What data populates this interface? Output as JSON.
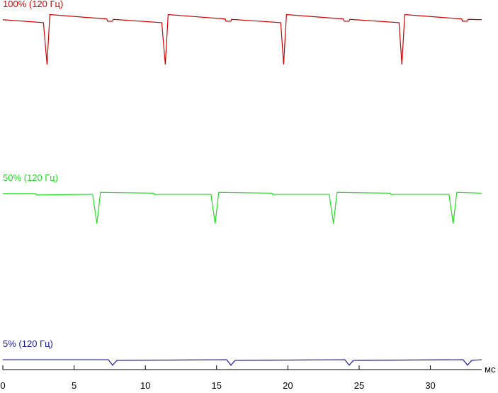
{
  "chart_data": {
    "type": "line",
    "x_label": "мс",
    "xlim": [
      0,
      33.6
    ],
    "xticks": [
      0,
      5,
      10,
      15,
      20,
      25,
      30
    ],
    "ylim": [
      0,
      100
    ],
    "series": [
      {
        "name": "100% (120 Гц)",
        "color": "#d00000",
        "x": [
          0,
          2.85,
          3.1,
          3.3,
          7.3,
          7.35,
          7.7,
          7.75,
          11.15,
          11.4,
          11.6,
          15.6,
          15.65,
          16.0,
          16.05,
          19.5,
          19.7,
          19.9,
          23.9,
          23.95,
          24.3,
          24.35,
          27.8,
          28.0,
          28.2,
          32.2,
          32.25,
          32.6,
          32.65,
          33.6
        ],
        "values": [
          95.4,
          94.6,
          83.2,
          96.8,
          95.6,
          95.0,
          95.0,
          95.5,
          94.6,
          83.2,
          96.8,
          95.6,
          95.0,
          95.0,
          95.5,
          94.6,
          83.2,
          96.8,
          95.6,
          95.0,
          95.0,
          95.5,
          94.6,
          83.2,
          96.8,
          95.6,
          95.0,
          95.0,
          95.5,
          95.4
        ]
      },
      {
        "name": "50% (120 Гц)",
        "color": "#22dd22",
        "x": [
          0,
          2.3,
          2.35,
          2.6,
          6.3,
          6.6,
          6.85,
          10.6,
          10.65,
          10.9,
          14.6,
          14.9,
          15.15,
          18.9,
          18.95,
          19.2,
          22.9,
          23.2,
          23.45,
          27.2,
          27.25,
          27.5,
          31.3,
          31.6,
          31.85,
          33.6
        ],
        "values": [
          48.0,
          48.0,
          47.6,
          47.6,
          47.8,
          39.8,
          48.3,
          48.1,
          47.7,
          47.8,
          47.8,
          39.8,
          48.3,
          48.1,
          47.7,
          47.8,
          47.8,
          39.8,
          48.3,
          48.1,
          47.7,
          47.8,
          47.8,
          39.8,
          48.3,
          48.1
        ]
      },
      {
        "name": "5% (120 Гц)",
        "color": "#1a1aa0",
        "x": [
          0,
          7.4,
          7.7,
          8.0,
          15.7,
          16.0,
          16.3,
          24.0,
          24.3,
          24.6,
          32.3,
          32.6,
          32.9,
          33.6
        ],
        "values": [
          2.7,
          2.7,
          1.2,
          2.5,
          2.7,
          1.2,
          2.5,
          2.7,
          1.2,
          2.5,
          2.7,
          1.2,
          2.5,
          2.7
        ]
      }
    ]
  }
}
